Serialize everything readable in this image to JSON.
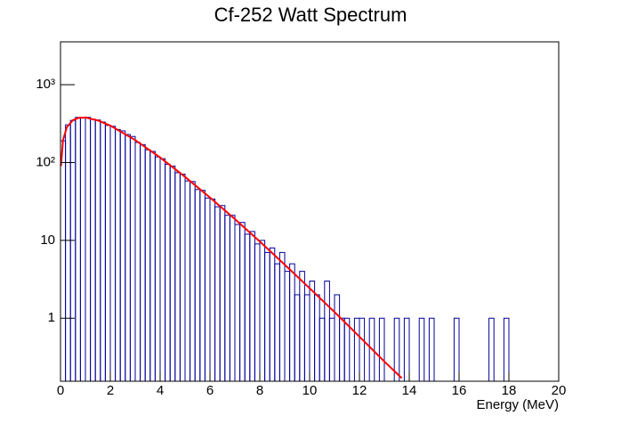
{
  "chart_data": {
    "type": "histogram",
    "title": "Cf-252 Watt Spectrum",
    "x_label": "Energy (MeV)",
    "log_y": true,
    "color": "#000099",
    "bins": [
      0,
      0.2,
      0.4,
      0.6,
      0.8,
      1,
      1.2,
      1.4,
      1.6,
      1.8,
      2,
      2.2,
      2.4,
      2.6,
      2.8,
      3,
      3.2,
      3.4,
      3.6,
      3.8,
      4,
      4.2,
      4.4,
      4.6,
      4.8,
      5,
      5.2,
      5.4,
      5.6,
      5.8,
      6,
      6.2,
      6.4,
      6.6,
      6.8,
      7,
      7.2,
      7.4,
      7.6,
      7.8,
      8,
      8.2,
      8.4,
      8.6,
      8.8,
      9,
      9.2,
      9.4,
      9.6,
      9.8,
      10,
      10.2,
      10.4,
      10.6,
      10.8,
      11,
      11.2,
      11.4,
      11.6,
      11.8,
      12,
      12.2,
      12.4,
      12.6,
      12.8,
      13,
      13.2,
      13.4,
      13.6,
      13.8,
      14,
      14.2,
      14.4,
      14.6,
      14.8,
      15,
      15.2,
      15.4,
      15.6,
      15.8,
      16,
      16.2,
      16.4,
      16.6,
      16.8,
      17,
      17.2,
      17.4,
      17.6,
      17.8,
      18,
      18.2,
      18.4,
      18.6,
      18.8,
      19,
      19.2,
      19.4,
      19.6,
      19.8,
      20
    ],
    "values": [
      190,
      305,
      348,
      380,
      372,
      381,
      360,
      352,
      331,
      300,
      292,
      266,
      255,
      229,
      216,
      181,
      170,
      146,
      139,
      118,
      112,
      95,
      90,
      74,
      71,
      58,
      57,
      45,
      44,
      35,
      34,
      27,
      28,
      21,
      21,
      16,
      17,
      12,
      13,
      9,
      10,
      7,
      8,
      5,
      7,
      4,
      5,
      2,
      4,
      2,
      3,
      2,
      1,
      3,
      1,
      2,
      1,
      1,
      0,
      1,
      1,
      0,
      1,
      0,
      1,
      0,
      0,
      1,
      0,
      1,
      0,
      0,
      1,
      0,
      1,
      0,
      0,
      0,
      0,
      1,
      0,
      0,
      0,
      0,
      0,
      0,
      1,
      0,
      0,
      1,
      0,
      0,
      0,
      0,
      0,
      0,
      0,
      0,
      0,
      0
    ],
    "fit_curve": {
      "color": "#ff0000",
      "x": [
        0.02,
        0.1,
        0.25,
        0.5,
        0.75,
        1,
        1.5,
        2,
        3,
        4,
        5,
        6,
        7,
        8,
        9,
        10,
        11,
        12,
        13,
        13.7
      ],
      "values": [
        90,
        193,
        283,
        351,
        376,
        379,
        347,
        298,
        194,
        116,
        65.4,
        35.5,
        18.8,
        9.66,
        4.88,
        2.43,
        1.2,
        0.58,
        0.278,
        0.17
      ]
    },
    "xlim": [
      0,
      20
    ],
    "xticks": [
      0,
      2,
      4,
      6,
      8,
      10,
      12,
      14,
      16,
      18,
      20
    ],
    "ylim": [
      0.155,
      3550
    ],
    "yticks": [
      1,
      10,
      {
        "value": 100,
        "label": "10²"
      },
      {
        "value": 1000,
        "label": "10³"
      }
    ]
  }
}
